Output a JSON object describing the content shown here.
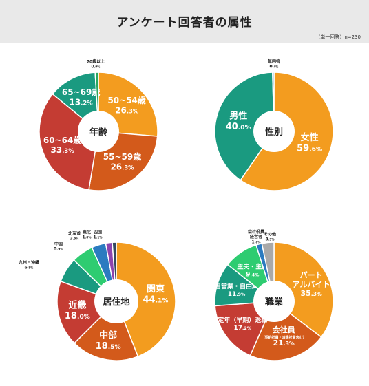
{
  "page": {
    "title": "アンケート回答者の属性",
    "note": "（単一回答）n=230"
  },
  "chart_data": [
    {
      "type": "pie",
      "center_label": "年齢",
      "categories": [
        "50~54歳",
        "55~59歳",
        "60~64歳",
        "65~69歳",
        "70歳以上"
      ],
      "values": [
        26.3,
        26.3,
        33.3,
        13.2,
        0.9
      ],
      "colors": [
        "#f39c1f",
        "#d35a1b",
        "#c43c33",
        "#1a9a80",
        "#2aa85f"
      ]
    },
    {
      "type": "pie",
      "center_label": "性別",
      "categories": [
        "女性",
        "男性",
        "無回答"
      ],
      "values": [
        59.6,
        40.0,
        0.4
      ],
      "colors": [
        "#f39c1f",
        "#1a9a80",
        "#2b7bc0"
      ]
    },
    {
      "type": "pie",
      "center_label": "居住地",
      "categories": [
        "関東",
        "中部",
        "近畿",
        "九州・沖縄",
        "中国",
        "北海道",
        "東北",
        "四国"
      ],
      "values": [
        44.1,
        18.5,
        18.0,
        6.8,
        5.9,
        3.9,
        1.8,
        1.1
      ],
      "colors": [
        "#f39c1f",
        "#d35a1b",
        "#c43c33",
        "#1a9a80",
        "#2ecc71",
        "#2b7bc0",
        "#8e44ad",
        "#34495e"
      ]
    },
    {
      "type": "pie",
      "center_label": "職業",
      "categories": [
        "パート\nアルバイト",
        "会社員",
        "定年（早期）退職",
        "自営業・自由業",
        "主夫・主婦",
        "会社役員\n経営者",
        "その他"
      ],
      "sublabels": [
        "",
        "（契約社員・派遣社員含む）",
        "",
        "",
        "",
        "",
        ""
      ],
      "values": [
        35.3,
        21.3,
        17.2,
        11.9,
        9.4,
        1.6,
        3.3
      ],
      "colors": [
        "#f39c1f",
        "#d35a1b",
        "#c43c33",
        "#1a9a80",
        "#2ecc71",
        "#2b7bc0",
        "#a9a9a9"
      ]
    }
  ]
}
